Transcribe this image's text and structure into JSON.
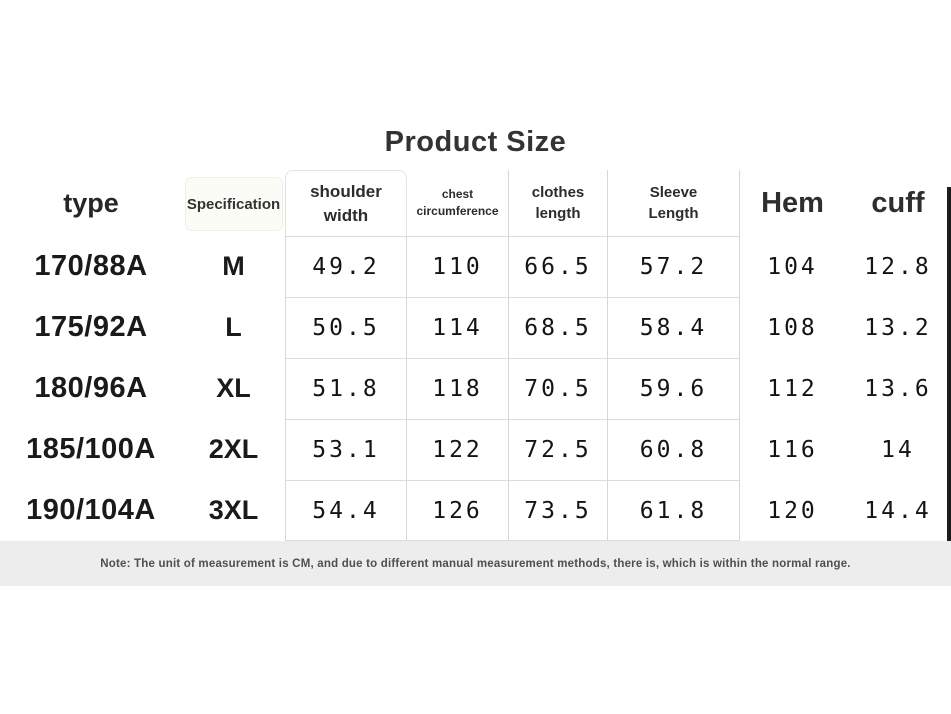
{
  "chart_data": {
    "type": "table",
    "title": "Product Size",
    "columns": [
      {
        "key": "type",
        "label": "type"
      },
      {
        "key": "specification",
        "label": "Specification"
      },
      {
        "key": "shoulder_width",
        "label": "shoulder\nwidth"
      },
      {
        "key": "chest_circumference",
        "label": "chest\ncircumference"
      },
      {
        "key": "clothes_length",
        "label": "clothes\nlength"
      },
      {
        "key": "sleeve_length",
        "label": "Sleeve\nLength"
      },
      {
        "key": "hem",
        "label": "Hem"
      },
      {
        "key": "cuff",
        "label": "cuff"
      }
    ],
    "rows": [
      [
        "170/88A",
        "M",
        "49.2",
        "110",
        "66.5",
        "57.2",
        "104",
        "12.8"
      ],
      [
        "175/92A",
        "L",
        "50.5",
        "114",
        "68.5",
        "58.4",
        "108",
        "13.2"
      ],
      [
        "180/96A",
        "XL",
        "51.8",
        "118",
        "70.5",
        "59.6",
        "112",
        "13.6"
      ],
      [
        "185/100A",
        "2XL",
        "53.1",
        "122",
        "72.5",
        "60.8",
        "116",
        "14"
      ],
      [
        "190/104A",
        "3XL",
        "54.4",
        "126",
        "73.5",
        "61.8",
        "120",
        "14.4"
      ]
    ],
    "note": "Note: The unit of measurement is CM, and due to different manual measurement methods, there is, which is within the normal range.",
    "unit": "CM",
    "layout": {
      "grid": "light-gray lines around middle four columns only",
      "note_bar_color": "#ededed"
    }
  }
}
